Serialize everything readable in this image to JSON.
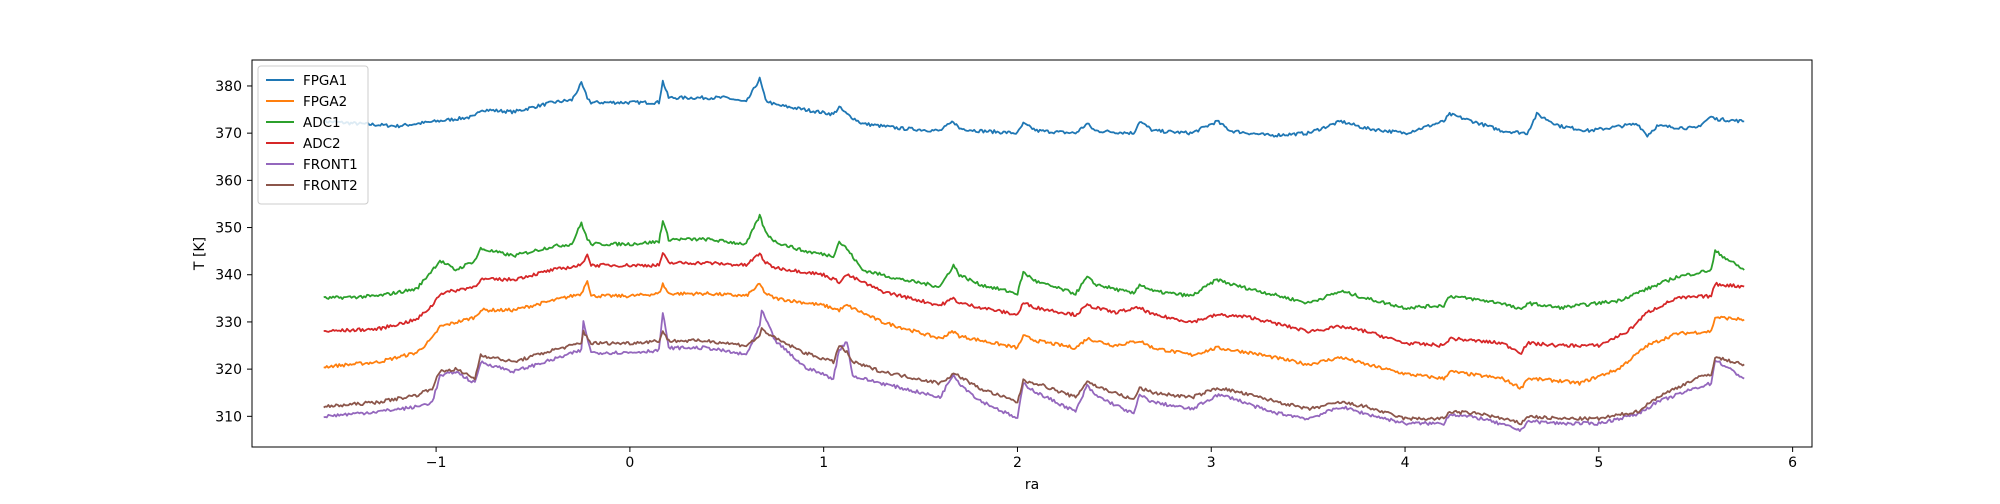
{
  "chart_data": {
    "type": "line",
    "title": "",
    "xlabel": "ra",
    "ylabel": "T [K]",
    "xlim": [
      -1.95,
      6.1
    ],
    "ylim": [
      303.5,
      385.5
    ],
    "xticks": [
      -1,
      0,
      1,
      2,
      3,
      4,
      5,
      6
    ],
    "xtick_labels": [
      "−1",
      "0",
      "1",
      "2",
      "3",
      "4",
      "5",
      "6"
    ],
    "yticks": [
      310,
      320,
      330,
      340,
      350,
      360,
      370,
      380
    ],
    "ytick_labels": [
      "310",
      "320",
      "330",
      "340",
      "350",
      "360",
      "370",
      "380"
    ],
    "grid": false,
    "legend_position": "top-left",
    "series": [
      {
        "name": "FPGA1",
        "color": "#1f77b4",
        "x": [
          -1.58,
          -1.4,
          -1.2,
          -1.0,
          -0.8,
          -0.77,
          -0.6,
          -0.4,
          -0.3,
          -0.25,
          -0.22,
          -0.2,
          -0.1,
          0.0,
          0.15,
          0.17,
          0.2,
          0.3,
          0.5,
          0.6,
          0.67,
          0.7,
          0.75,
          0.9,
          1.05,
          1.08,
          1.12,
          1.2,
          1.4,
          1.6,
          1.67,
          1.7,
          1.8,
          2.0,
          2.03,
          2.1,
          2.3,
          2.36,
          2.4,
          2.6,
          2.63,
          2.7,
          2.9,
          3.03,
          3.1,
          3.3,
          3.5,
          3.67,
          3.8,
          4.0,
          4.2,
          4.23,
          4.35,
          4.5,
          4.63,
          4.68,
          4.8,
          4.95,
          5.2,
          5.25,
          5.3,
          5.5,
          5.58,
          5.6,
          5.75
        ],
        "y": [
          372.5,
          372,
          371.5,
          372.5,
          373.5,
          375,
          374.5,
          376.5,
          377,
          380.5,
          377.5,
          376.5,
          376.5,
          376.5,
          376.5,
          381,
          377.5,
          377.5,
          377.5,
          376.5,
          381.5,
          377,
          376,
          375,
          374,
          375.5,
          374,
          372,
          371,
          370.5,
          372.5,
          371,
          370.5,
          370,
          372,
          370.5,
          370,
          372,
          370.5,
          370,
          372.5,
          370.5,
          370,
          372.5,
          370.5,
          369.5,
          370,
          372.5,
          371,
          370,
          372.5,
          374,
          372.5,
          370.5,
          370,
          374,
          371.5,
          370.5,
          372,
          369.5,
          371.5,
          371,
          373.5,
          373,
          372.5
        ]
      },
      {
        "name": "FPGA2",
        "color": "#ff7f0e",
        "x": [
          -1.58,
          -1.3,
          -1.1,
          -1.02,
          -0.98,
          -0.8,
          -0.77,
          -0.6,
          -0.4,
          -0.25,
          -0.22,
          -0.2,
          0.0,
          0.15,
          0.17,
          0.2,
          0.4,
          0.6,
          0.67,
          0.7,
          0.75,
          1.0,
          1.08,
          1.12,
          1.3,
          1.6,
          1.67,
          1.7,
          2.0,
          2.03,
          2.1,
          2.3,
          2.36,
          2.5,
          2.63,
          2.7,
          2.9,
          3.03,
          3.2,
          3.5,
          3.67,
          3.8,
          4.0,
          4.2,
          4.23,
          4.5,
          4.6,
          4.63,
          4.8,
          4.9,
          5.1,
          5.25,
          5.4,
          5.58,
          5.6,
          5.75
        ],
        "y": [
          320.5,
          321.5,
          323.5,
          326.5,
          329,
          331,
          332.5,
          332.5,
          334.5,
          336,
          339,
          335.5,
          335.5,
          336,
          338,
          336,
          336,
          335.5,
          338,
          336,
          335,
          333.5,
          332.5,
          333.5,
          330,
          326.5,
          328,
          327,
          324.5,
          327,
          326,
          324.5,
          326.5,
          325,
          326,
          324.5,
          323,
          324.5,
          323.5,
          321,
          322.5,
          321,
          319,
          318,
          319.5,
          318,
          316,
          318,
          317.5,
          317,
          320,
          325,
          327.5,
          328,
          331,
          330.5
        ]
      },
      {
        "name": "ADC1",
        "color": "#2ca02c",
        "x": [
          -1.58,
          -1.3,
          -1.1,
          -1.02,
          -0.98,
          -0.9,
          -0.8,
          -0.77,
          -0.6,
          -0.4,
          -0.3,
          -0.25,
          -0.22,
          -0.2,
          0.0,
          0.15,
          0.17,
          0.2,
          0.4,
          0.6,
          0.67,
          0.7,
          0.75,
          0.9,
          1.05,
          1.08,
          1.12,
          1.2,
          1.4,
          1.6,
          1.67,
          1.7,
          1.8,
          2.0,
          2.03,
          2.1,
          2.3,
          2.36,
          2.4,
          2.6,
          2.63,
          2.7,
          2.9,
          3.03,
          3.1,
          3.3,
          3.5,
          3.67,
          3.8,
          4.0,
          4.2,
          4.23,
          4.5,
          4.6,
          4.63,
          4.8,
          5.1,
          5.25,
          5.4,
          5.58,
          5.6,
          5.75
        ],
        "y": [
          335,
          335.5,
          337,
          341,
          343,
          341,
          343,
          345.5,
          344,
          346,
          346.5,
          351,
          347.5,
          346.5,
          346.5,
          347,
          351.5,
          347.5,
          347.5,
          346.5,
          352.5,
          349,
          347,
          345,
          344,
          347,
          345.5,
          341,
          339,
          337.5,
          342,
          340,
          338,
          336,
          340.5,
          338.5,
          336,
          339.5,
          338,
          336,
          338,
          336.5,
          335.5,
          339,
          338,
          336,
          334,
          336.5,
          335,
          333,
          333.5,
          335.5,
          334,
          332.5,
          334,
          333,
          334.5,
          337,
          339.5,
          341,
          345,
          341
        ]
      },
      {
        "name": "ADC2",
        "color": "#d62728",
        "x": [
          -1.58,
          -1.3,
          -1.1,
          -1.02,
          -0.98,
          -0.8,
          -0.77,
          -0.6,
          -0.4,
          -0.25,
          -0.22,
          -0.2,
          0.0,
          0.15,
          0.17,
          0.2,
          0.4,
          0.6,
          0.67,
          0.7,
          0.75,
          1.0,
          1.08,
          1.12,
          1.3,
          1.6,
          1.67,
          1.7,
          2.0,
          2.03,
          2.1,
          2.3,
          2.36,
          2.5,
          2.63,
          2.7,
          2.9,
          3.03,
          3.2,
          3.5,
          3.67,
          3.8,
          4.0,
          4.2,
          4.23,
          4.5,
          4.6,
          4.63,
          4.8,
          5.0,
          5.15,
          5.25,
          5.4,
          5.58,
          5.6,
          5.75
        ],
        "y": [
          328,
          328.5,
          330.5,
          333.5,
          336,
          337.5,
          339,
          339,
          341,
          342,
          344.5,
          342,
          342,
          342,
          344.5,
          342.5,
          342.5,
          342,
          344.5,
          342.5,
          341.5,
          340,
          338.5,
          340,
          336.5,
          333.5,
          335,
          334,
          331.5,
          334,
          333,
          331.5,
          333.5,
          332,
          333,
          331.5,
          330,
          331.5,
          331,
          328,
          329,
          328,
          325.5,
          325,
          326.5,
          325.5,
          323.5,
          325.5,
          325,
          325,
          328,
          332,
          335,
          335.5,
          338,
          337.5
        ]
      },
      {
        "name": "FRONT1",
        "color": "#9467bd",
        "x": [
          -1.58,
          -1.3,
          -1.1,
          -1.02,
          -0.98,
          -0.9,
          -0.8,
          -0.77,
          -0.6,
          -0.4,
          -0.25,
          -0.24,
          -0.2,
          0.0,
          0.15,
          0.17,
          0.2,
          0.4,
          0.6,
          0.67,
          0.68,
          0.75,
          0.9,
          1.05,
          1.08,
          1.12,
          1.15,
          1.3,
          1.6,
          1.67,
          1.7,
          1.8,
          2.0,
          2.03,
          2.1,
          2.3,
          2.36,
          2.4,
          2.6,
          2.63,
          2.7,
          2.9,
          3.03,
          3.1,
          3.3,
          3.5,
          3.67,
          3.8,
          4.0,
          4.2,
          4.23,
          4.4,
          4.6,
          4.63,
          4.8,
          5.0,
          5.2,
          5.3,
          5.5,
          5.58,
          5.6,
          5.75
        ],
        "y": [
          310,
          311,
          312,
          313,
          318.5,
          319.5,
          317,
          321.5,
          319.5,
          322,
          324,
          330,
          323.5,
          323.5,
          324,
          332,
          324.5,
          324.5,
          323,
          329,
          332.5,
          326,
          320.5,
          318,
          324,
          326,
          318.5,
          317,
          314,
          319,
          317,
          313.5,
          309.5,
          317,
          315,
          311,
          316.5,
          314.5,
          310.5,
          314.5,
          313,
          311.5,
          314.5,
          314,
          311,
          309.5,
          312,
          310.5,
          308.5,
          308.5,
          310.5,
          309.5,
          307,
          309,
          308.5,
          308.5,
          310.5,
          313,
          316,
          317,
          322,
          318
        ]
      },
      {
        "name": "FRONT2",
        "color": "#8c564b",
        "x": [
          -1.58,
          -1.3,
          -1.1,
          -1.02,
          -0.98,
          -0.9,
          -0.8,
          -0.77,
          -0.6,
          -0.4,
          -0.25,
          -0.24,
          -0.2,
          0.0,
          0.15,
          0.17,
          0.2,
          0.4,
          0.6,
          0.67,
          0.68,
          0.75,
          0.9,
          1.05,
          1.08,
          1.12,
          1.15,
          1.3,
          1.6,
          1.67,
          1.7,
          1.8,
          2.0,
          2.03,
          2.1,
          2.3,
          2.36,
          2.4,
          2.6,
          2.63,
          2.7,
          2.9,
          3.03,
          3.1,
          3.3,
          3.5,
          3.67,
          3.8,
          4.0,
          4.2,
          4.23,
          4.4,
          4.6,
          4.63,
          4.8,
          5.0,
          5.2,
          5.3,
          5.5,
          5.58,
          5.6,
          5.75
        ],
        "y": [
          312,
          313,
          314.5,
          316,
          319.5,
          320,
          318,
          323,
          321.5,
          324,
          325.5,
          328,
          325.5,
          325.5,
          326,
          328,
          326,
          326,
          325,
          327,
          328.5,
          326.5,
          323.5,
          321.5,
          325,
          323.5,
          321.5,
          319.5,
          317,
          319,
          318.5,
          316,
          313,
          317.5,
          317,
          314,
          317.5,
          316.5,
          313.5,
          316,
          315,
          314,
          316,
          315.5,
          313.5,
          311.5,
          313,
          312,
          309.5,
          309.5,
          311,
          310.5,
          308.5,
          310,
          309.5,
          309.5,
          311,
          314,
          318,
          319,
          322.5,
          321
        ]
      }
    ]
  }
}
